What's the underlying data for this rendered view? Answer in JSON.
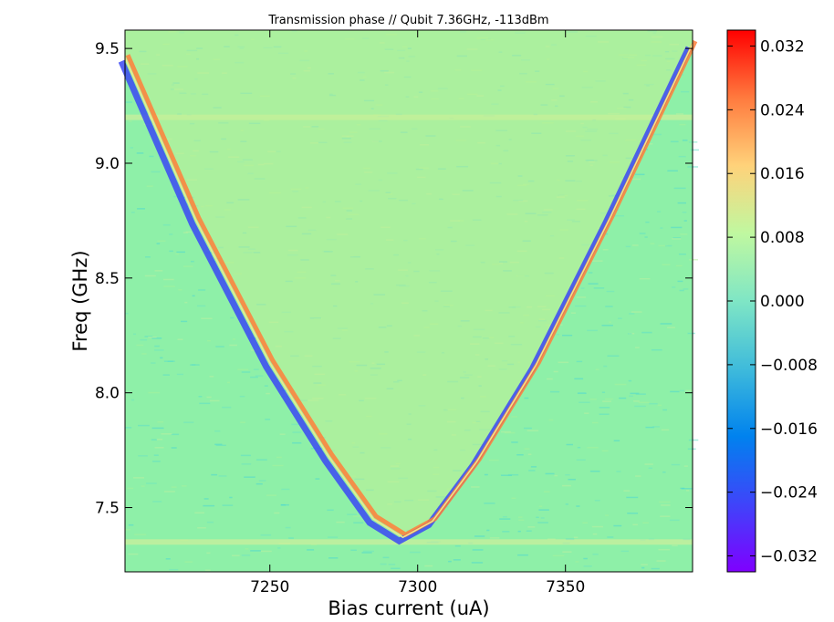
{
  "chart_data": {
    "type": "heatmap",
    "title": "Transmission phase // Qubit 7.36GHz, -113dBm",
    "xlabel": "Bias current (uA)",
    "ylabel": "Freq (GHz)",
    "xlim": [
      7201,
      7393
    ],
    "ylim": [
      7.22,
      9.58
    ],
    "xticks": [
      7250,
      7300,
      7350
    ],
    "xtick_labels": [
      "7250",
      "7300",
      "7350"
    ],
    "yticks": [
      7.5,
      8.0,
      8.5,
      9.0,
      9.5
    ],
    "ytick_labels": [
      "7.5",
      "8.0",
      "8.5",
      "9.0",
      "9.5"
    ],
    "colorbar": {
      "range": [
        -0.034,
        0.034
      ],
      "ticks": [
        0.032,
        0.024,
        0.016,
        0.008,
        0.0,
        -0.008,
        -0.016,
        -0.024,
        -0.032
      ],
      "tick_labels": [
        "0.032",
        "0.024",
        "0.016",
        "0.008",
        "0.000",
        "−0.008",
        "−0.016",
        "−0.024",
        "−0.032"
      ],
      "colormap": "rainbow"
    },
    "features": {
      "qubit_dispersion_curve": {
        "description_values": "parabolic transition",
        "vertex_current_uA": 7295,
        "vertex_freq_GHz": 7.37,
        "points": [
          [
            7201,
            9.46
          ],
          [
            7225,
            8.75
          ],
          [
            7250,
            8.13
          ],
          [
            7270,
            7.72
          ],
          [
            7285,
            7.45
          ],
          [
            7295,
            7.37
          ],
          [
            7305,
            7.44
          ],
          [
            7320,
            7.7
          ],
          [
            7340,
            8.12
          ],
          [
            7365,
            8.76
          ],
          [
            7393,
            9.52
          ]
        ]
      },
      "horizontal_bands_GHz": [
        7.35,
        9.2
      ]
    },
    "grid": false,
    "legend": "colorbar-right"
  }
}
